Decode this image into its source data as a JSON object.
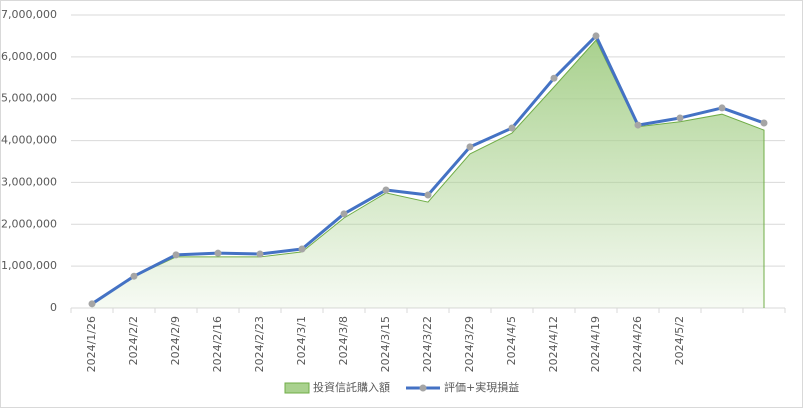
{
  "chart_data": {
    "type": "combo",
    "categories": [
      "2024/1/26",
      "2024/2/2",
      "2024/2/9",
      "2024/2/16",
      "2024/2/23",
      "2024/3/1",
      "2024/3/8",
      "2024/3/15",
      "2024/3/22",
      "2024/3/29",
      "2024/4/5",
      "2024/4/12",
      "2024/4/19",
      "2024/4/26",
      "2024/5/2",
      null,
      null
    ],
    "series": [
      {
        "name": "投資信託購入額",
        "type": "area",
        "color": "#a9d18e",
        "edge_color": "#70ad47",
        "values": [
          80000,
          750000,
          1220000,
          1220000,
          1220000,
          1340000,
          2150000,
          2750000,
          2530000,
          3680000,
          4180000,
          5280000,
          6400000,
          4330000,
          4450000,
          4630000,
          4250000
        ]
      },
      {
        "name": "評価+実現損益",
        "type": "line",
        "color": "#4472c4",
        "marker_color": "#a5a5a5",
        "values": [
          100000,
          760000,
          1270000,
          1310000,
          1290000,
          1410000,
          2250000,
          2820000,
          2700000,
          3850000,
          4300000,
          5490000,
          6500000,
          4370000,
          4540000,
          4780000,
          4420000
        ]
      }
    ],
    "ylim": [
      0,
      7000000
    ],
    "yticks": [
      0,
      {
        "value": 1000000,
        "label": "1,000,000"
      },
      {
        "value": 2000000,
        "label": "2,000,000"
      },
      {
        "value": 3000000,
        "label": "3,000,000"
      },
      {
        "value": 4000000,
        "label": "4,000,000"
      },
      {
        "value": 5000000,
        "label": "5,000,000"
      },
      {
        "value": 6000000,
        "label": "6,000,000"
      },
      {
        "value": 7000000,
        "label": "7,000,000"
      }
    ],
    "grid": true,
    "legend": "bottom"
  }
}
